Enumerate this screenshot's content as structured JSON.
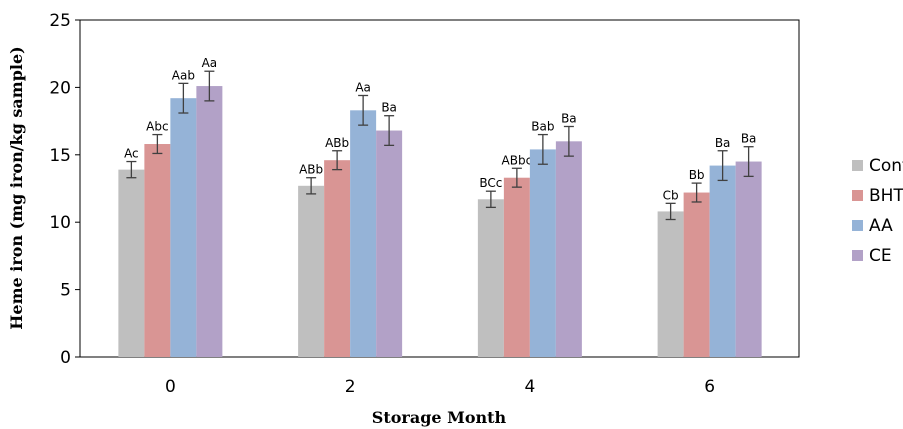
{
  "chart_data": {
    "type": "bar",
    "xlabel": "Storage Month",
    "ylabel": "Heme iron (mg iron/kg sample)",
    "ylim": [
      0,
      25
    ],
    "yticks": [
      0,
      5,
      10,
      15,
      20,
      25
    ],
    "categories": [
      "0",
      "2",
      "4",
      "6"
    ],
    "grid": false,
    "legend_position": "right",
    "series": [
      {
        "name": "Control",
        "color": "#bfbfbf",
        "values": [
          13.9,
          12.7,
          11.7,
          10.8
        ],
        "errors": [
          0.6,
          0.6,
          0.6,
          0.6
        ],
        "labels": [
          "Ac",
          "ABb",
          "BCc",
          "Cb"
        ]
      },
      {
        "name": "BHT",
        "color": "#d99594",
        "values": [
          15.8,
          14.6,
          13.3,
          12.2
        ],
        "errors": [
          0.7,
          0.7,
          0.7,
          0.7
        ],
        "labels": [
          "Abc",
          "ABb",
          "ABbc",
          "Bb"
        ]
      },
      {
        "name": "AA",
        "color": "#95b3d7",
        "values": [
          19.2,
          18.3,
          15.4,
          14.2
        ],
        "errors": [
          1.1,
          1.1,
          1.1,
          1.1
        ],
        "labels": [
          "Aab",
          "Aa",
          "Bab",
          "Ba"
        ]
      },
      {
        "name": "CE",
        "color": "#b2a1c7",
        "values": [
          20.1,
          16.8,
          16.0,
          14.5
        ],
        "errors": [
          1.1,
          1.1,
          1.1,
          1.1
        ],
        "labels": [
          "Aa",
          "Ba",
          "Ba",
          "Ba"
        ]
      }
    ]
  }
}
